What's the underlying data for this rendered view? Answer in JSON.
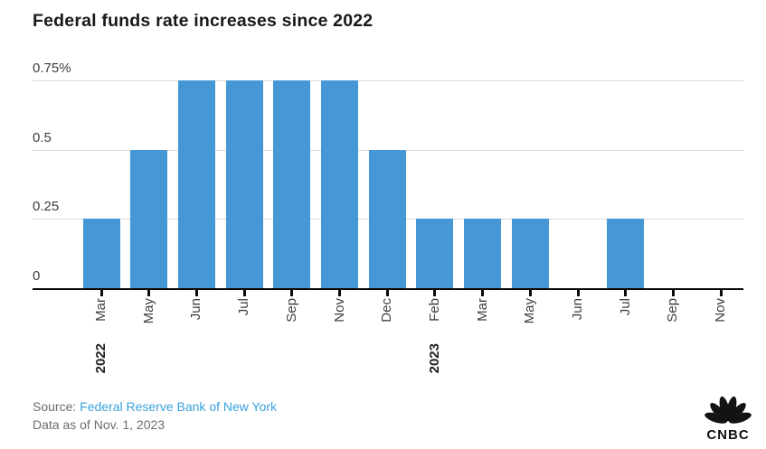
{
  "title": "Federal funds rate increases since 2022",
  "chart_data": {
    "type": "bar",
    "categories": [
      "Mar",
      "May",
      "Jun",
      "Jul",
      "Sep",
      "Nov",
      "Dec",
      "Feb",
      "Mar",
      "May",
      "Jun",
      "Jul",
      "Sep",
      "Nov"
    ],
    "values": [
      0.25,
      0.5,
      0.75,
      0.75,
      0.75,
      0.75,
      0.5,
      0.25,
      0.25,
      0.25,
      0,
      0.25,
      0,
      0
    ],
    "year_markers": [
      {
        "label": "2022",
        "index": 0
      },
      {
        "label": "2023",
        "index": 7
      }
    ],
    "y_ticks": [
      {
        "label": "0.75%",
        "value": 0.75
      },
      {
        "label": "0.5",
        "value": 0.5
      },
      {
        "label": "0.25",
        "value": 0.25
      },
      {
        "label": "0",
        "value": 0
      }
    ],
    "ylim": [
      0,
      0.75
    ],
    "grid": "horizontal",
    "legend": "none",
    "title": "Federal funds rate increases since 2022"
  },
  "footer": {
    "source_prefix": "Source:",
    "source_link": "Federal Reserve Bank of New York",
    "data_as_of": "Data as of Nov. 1, 2023"
  },
  "branding": {
    "logo_text": "CNBC",
    "logo_icon": "peacock-icon"
  },
  "colors": {
    "bar": "#4697d6",
    "link": "#3aa1dc",
    "grid": "#d9d9d9",
    "axis": "#0a0a0a",
    "title_text": "#16181a",
    "footer_text": "#6d6d6d",
    "logo": "#131313"
  }
}
